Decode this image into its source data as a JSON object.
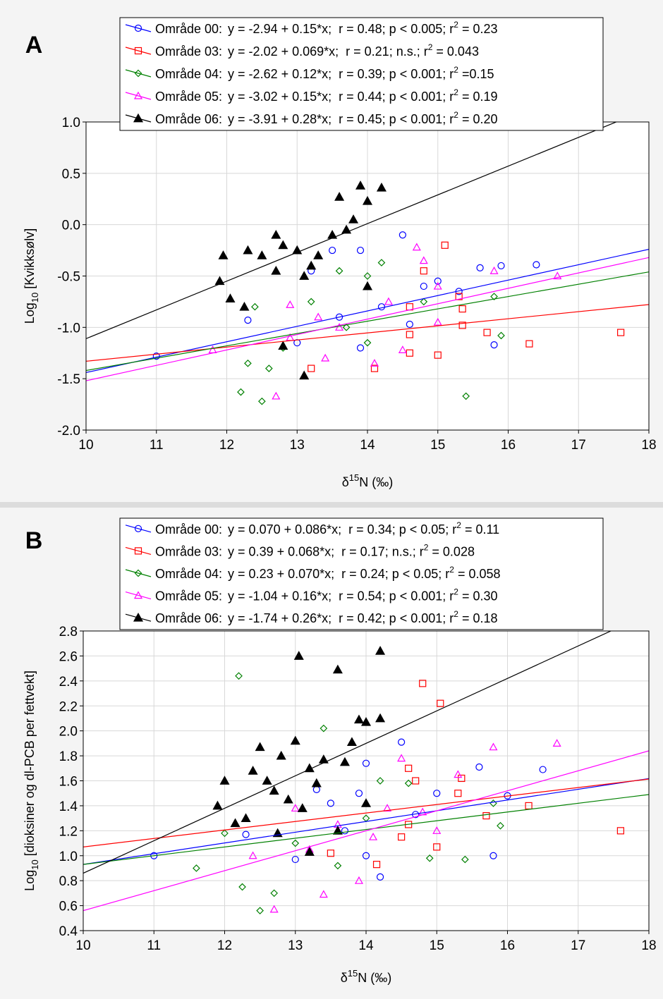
{
  "chart_data": [
    {
      "type": "scatter",
      "panel": "A",
      "xlabel": {
        "text": "δ",
        "sup": "15",
        "after": "N (‰)"
      },
      "ylabel": {
        "text": "Log",
        "sub": "10",
        "after": " [Kvikksølv]"
      },
      "xlim": [
        10,
        18
      ],
      "xticks": [
        10,
        11,
        12,
        13,
        14,
        15,
        16,
        17,
        18
      ],
      "ylim": [
        -2,
        1
      ],
      "yticks": [
        {
          "value": -2,
          "label": "-2.0"
        },
        -1.5,
        {
          "value": -1,
          "label": "-1.0"
        },
        -0.5,
        {
          "value": 0,
          "label": "0.0"
        },
        0.5,
        {
          "value": 1,
          "label": "1.0"
        }
      ],
      "grid": true,
      "series": [
        {
          "name": "Område 00:",
          "label": "y = -2.94 + 0.15*x;  r = 0.48; p < 0.005; r",
          "label_sup": "2",
          "label_end": " = 0.23",
          "intercept": -2.94,
          "slope": 0.15,
          "color": "#0000ff",
          "marker": "circle",
          "x": [
            11.0,
            12.3,
            13.2,
            13.5,
            13.9,
            14.5,
            14.6,
            14.8,
            15.0,
            15.3,
            15.6,
            15.9,
            16.4,
            15.8,
            13.0,
            13.9,
            14.2,
            13.6
          ],
          "y": [
            -1.28,
            -0.93,
            -0.45,
            -0.25,
            -0.25,
            -0.1,
            -0.97,
            -0.6,
            -0.55,
            -0.65,
            -0.42,
            -0.4,
            -0.39,
            -1.17,
            -1.15,
            -1.2,
            -0.8,
            -0.9
          ]
        },
        {
          "name": "Område 03:",
          "label": "y = -2.02 + 0.069*x;  r = 0.21; n.s.; r",
          "label_sup": "2",
          "label_end": " = 0.043",
          "intercept": -2.02,
          "slope": 0.069,
          "color": "#ff0000",
          "marker": "square",
          "x": [
            13.2,
            14.1,
            14.6,
            14.8,
            15.0,
            15.1,
            15.3,
            15.35,
            15.35,
            15.7,
            16.3,
            17.6,
            14.6,
            14.6
          ],
          "y": [
            -1.4,
            -1.4,
            -0.8,
            -0.45,
            -1.27,
            -0.2,
            -0.7,
            -0.82,
            -0.98,
            -1.05,
            -1.16,
            -1.05,
            -1.07,
            -1.25
          ]
        },
        {
          "name": "Område 04:",
          "label": "y = -2.62 + 0.12*x;  r = 0.39; p < 0.001; r",
          "label_sup": "2",
          "label_end": " =0.15",
          "intercept": -2.62,
          "slope": 0.12,
          "color": "#008000",
          "marker": "diamond",
          "x": [
            12.2,
            12.5,
            12.4,
            12.6,
            12.3,
            13.2,
            13.6,
            14.0,
            14.2,
            14.8,
            15.4,
            15.9,
            12.8,
            13.7,
            14.0,
            15.8
          ],
          "y": [
            -1.63,
            -1.72,
            -0.8,
            -1.4,
            -1.35,
            -0.75,
            -0.45,
            -0.5,
            -0.37,
            -0.75,
            -1.67,
            -1.08,
            -1.2,
            -1.0,
            -1.15,
            -0.7
          ]
        },
        {
          "name": "Område 05:",
          "label": "y = -3.02 + 0.15*x;  r = 0.44; p < 0.001; r",
          "label_sup": "2",
          "label_end": " = 0.19",
          "intercept": -3.02,
          "slope": 0.15,
          "color": "#ff00ff",
          "marker": "triangle",
          "x": [
            11.8,
            12.7,
            12.9,
            13.4,
            13.6,
            14.1,
            14.3,
            14.7,
            14.8,
            15.0,
            15.0,
            15.8,
            16.7,
            13.3,
            14.5,
            12.9
          ],
          "y": [
            -1.22,
            -1.67,
            -0.78,
            -1.3,
            -1.0,
            -1.35,
            -0.75,
            -0.22,
            -0.35,
            -0.6,
            -0.95,
            -0.45,
            -0.5,
            -0.9,
            -1.22,
            -1.1
          ]
        },
        {
          "name": "Område 06:",
          "label": "y = -3.91 + 0.28*x;  r = 0.45; p < 0.001; r",
          "label_sup": "2",
          "label_end": " = 0.20",
          "intercept": -3.91,
          "slope": 0.28,
          "color": "#000000",
          "marker": "triangle-filled",
          "x": [
            11.9,
            11.95,
            12.05,
            12.3,
            12.5,
            12.7,
            12.8,
            13.0,
            13.1,
            13.3,
            13.5,
            13.6,
            13.8,
            13.9,
            14.0,
            14.2,
            13.1,
            12.8,
            14.0,
            13.2,
            12.7,
            13.7,
            12.25
          ],
          "y": [
            -0.55,
            -0.3,
            -0.72,
            -0.25,
            -0.3,
            -0.45,
            -0.2,
            -0.25,
            -0.5,
            -0.3,
            -0.1,
            0.27,
            0.05,
            0.38,
            0.23,
            0.36,
            -1.47,
            -1.18,
            -0.6,
            -0.4,
            -0.1,
            -0.05,
            -0.8
          ]
        }
      ]
    },
    {
      "type": "scatter",
      "panel": "B",
      "xlabel": {
        "text": "δ",
        "sup": "15",
        "after": "N (‰)"
      },
      "ylabel": {
        "text": "Log",
        "sub": "10",
        "after": " [dioksiner og dl-PCB per fettvekt]"
      },
      "xlim": [
        10,
        18
      ],
      "xticks": [
        10,
        11,
        12,
        13,
        14,
        15,
        16,
        17,
        18
      ],
      "ylim": [
        0.4,
        2.8
      ],
      "yticks": [
        0.4,
        0.6,
        0.8,
        {
          "value": 1,
          "label": "1.0"
        },
        1.2,
        1.4,
        1.6,
        1.8,
        {
          "value": 2,
          "label": "2.0"
        },
        2.2,
        2.4,
        2.6,
        2.8
      ],
      "grid": true,
      "series": [
        {
          "name": "Område 00:",
          "label": "y = 0.070 + 0.086*x;  r = 0.34; p < 0.05; r",
          "label_sup": "2",
          "label_end": " = 0.11",
          "intercept": 0.07,
          "slope": 0.086,
          "color": "#0000ff",
          "marker": "circle",
          "x": [
            11.0,
            12.3,
            13.0,
            13.3,
            13.5,
            13.9,
            14.0,
            14.0,
            14.2,
            14.5,
            14.7,
            15.0,
            15.6,
            15.8,
            16.0,
            16.5,
            13.7
          ],
          "y": [
            1.0,
            1.17,
            0.97,
            1.53,
            1.42,
            1.5,
            1.74,
            1.0,
            0.83,
            1.91,
            1.33,
            1.5,
            1.71,
            1.0,
            1.48,
            1.69,
            1.2
          ]
        },
        {
          "name": "Område 03:",
          "label": "y = 0.39 + 0.068*x;  r = 0.17; n.s.; r",
          "label_sup": "2",
          "label_end": " = 0.028",
          "intercept": 0.39,
          "slope": 0.068,
          "color": "#ff0000",
          "marker": "square",
          "x": [
            13.5,
            14.15,
            14.5,
            14.6,
            14.7,
            14.8,
            15.0,
            15.05,
            15.3,
            15.35,
            15.7,
            16.3,
            17.6,
            14.6
          ],
          "y": [
            1.02,
            0.93,
            1.15,
            1.7,
            1.6,
            2.38,
            1.07,
            2.22,
            1.5,
            1.62,
            1.32,
            1.4,
            1.2,
            1.25
          ]
        },
        {
          "name": "Område 04:",
          "label": "y = 0.23 + 0.070*x;  r = 0.24; p < 0.05; r",
          "label_sup": "2",
          "label_end": " = 0.058",
          "intercept": 0.23,
          "slope": 0.07,
          "color": "#008000",
          "marker": "diamond",
          "x": [
            11.6,
            12.2,
            12.25,
            12.5,
            12.7,
            13.4,
            13.6,
            14.2,
            14.6,
            14.9,
            15.4,
            15.8,
            15.9,
            12.0,
            13.0,
            14.0
          ],
          "y": [
            0.9,
            2.44,
            0.75,
            0.56,
            0.7,
            2.02,
            0.92,
            1.6,
            1.58,
            0.98,
            0.97,
            1.42,
            1.24,
            1.18,
            1.1,
            1.3
          ]
        },
        {
          "name": "Område 05:",
          "label": "y = -1.04 + 0.16*x;  r = 0.54; p < 0.001; r",
          "label_sup": "2",
          "label_end": " = 0.30",
          "intercept": -1.04,
          "slope": 0.16,
          "color": "#ff00ff",
          "marker": "triangle",
          "x": [
            12.7,
            13.0,
            13.2,
            13.4,
            13.9,
            14.1,
            14.5,
            14.8,
            15.3,
            15.8,
            16.7,
            13.6,
            14.3,
            12.4,
            15.0
          ],
          "y": [
            0.57,
            1.38,
            1.05,
            0.69,
            0.8,
            1.15,
            1.78,
            1.35,
            1.65,
            1.87,
            1.9,
            1.25,
            1.38,
            1.0,
            1.2
          ]
        },
        {
          "name": "Område 06:",
          "label": "y = -1.74 + 0.26*x;  r = 0.42; p < 0.001; r",
          "label_sup": "2",
          "label_end": " = 0.18",
          "intercept": -1.74,
          "slope": 0.26,
          "color": "#000000",
          "marker": "triangle-filled",
          "x": [
            11.9,
            12.0,
            12.15,
            12.3,
            12.4,
            12.5,
            12.6,
            12.7,
            12.8,
            12.9,
            13.0,
            13.05,
            13.1,
            13.2,
            13.3,
            13.4,
            13.6,
            13.6,
            13.8,
            13.9,
            14.0,
            14.2,
            14.2,
            14.0,
            13.7,
            12.75,
            13.2
          ],
          "y": [
            1.4,
            1.6,
            1.26,
            1.3,
            1.68,
            1.87,
            1.6,
            1.52,
            1.8,
            1.45,
            1.92,
            2.6,
            1.38,
            1.7,
            1.58,
            1.77,
            2.49,
            1.2,
            1.91,
            2.09,
            2.07,
            2.1,
            2.64,
            1.42,
            1.75,
            1.18,
            1.03
          ]
        }
      ]
    }
  ]
}
